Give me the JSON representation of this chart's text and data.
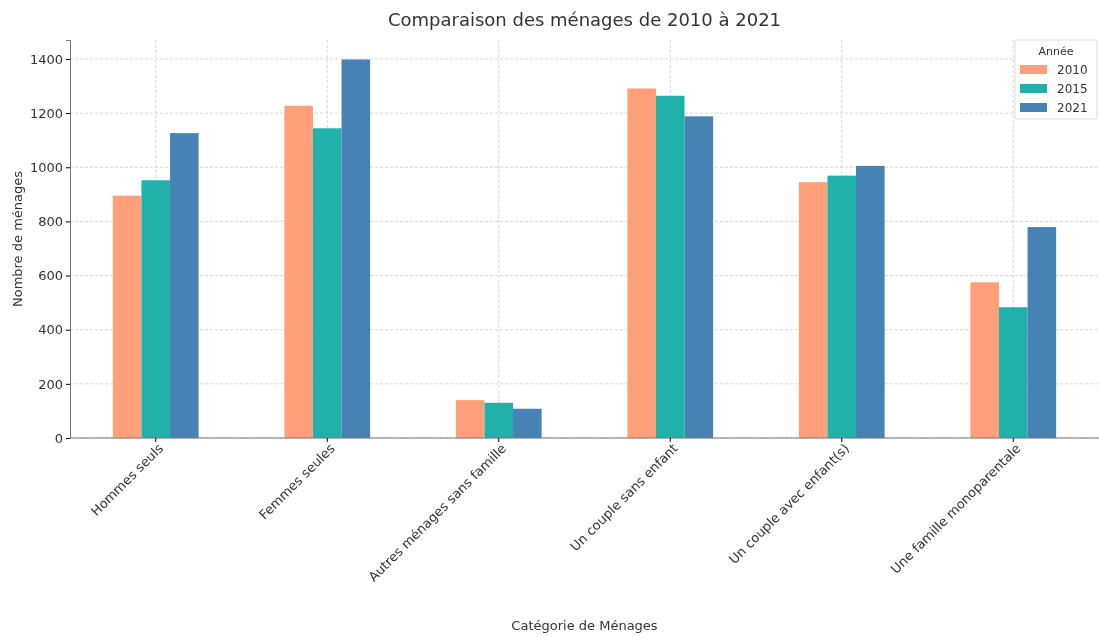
{
  "chart_data": {
    "type": "bar",
    "title": "Comparaison des ménages de 2010 à 2021",
    "xlabel": "Catégorie de Ménages",
    "ylabel": "Nombre de ménages",
    "legend_title": "Année",
    "categories": [
      "Hommes seuls",
      "Femmes seules",
      "Autres ménages sans famille",
      "Un couple sans enfant",
      "Un couple avec enfant(s)",
      "Une famille monoparentale"
    ],
    "series": [
      {
        "name": "2010",
        "color": "#ffa07a",
        "values": [
          895,
          1227,
          140,
          1291,
          945,
          575
        ]
      },
      {
        "name": "2015",
        "color": "#20b2aa",
        "values": [
          952,
          1144,
          130,
          1264,
          969,
          483
        ]
      },
      {
        "name": "2021",
        "color": "#4682b4",
        "values": [
          1126,
          1398,
          108,
          1188,
          1005,
          779
        ]
      }
    ],
    "ylim": [
      0,
      1470
    ],
    "yticks": [
      0,
      200,
      400,
      600,
      800,
      1000,
      1200,
      1400
    ],
    "grid": true,
    "legend": "top right"
  }
}
